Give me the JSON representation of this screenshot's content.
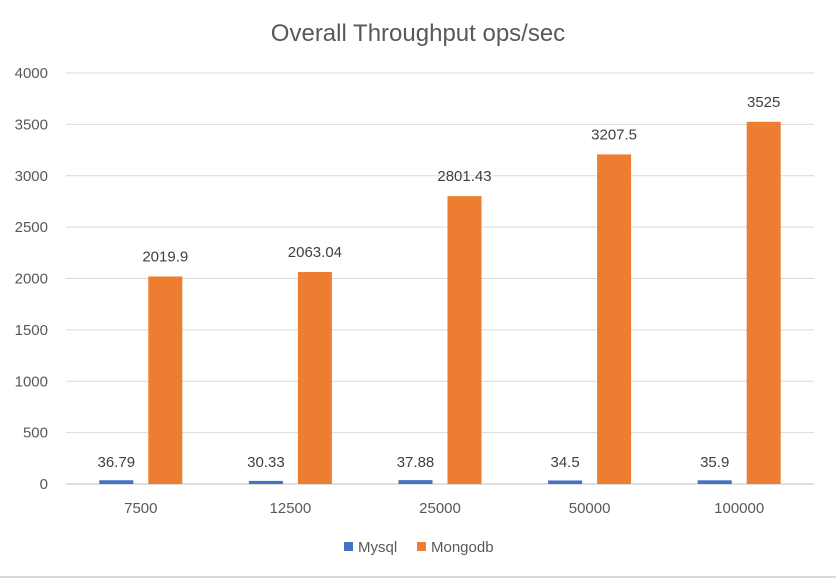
{
  "chart_data": {
    "type": "bar",
    "title": "Overall Throughput ops/sec",
    "xlabel": "",
    "ylabel": "",
    "categories": [
      "7500",
      "12500",
      "25000",
      "50000",
      "100000"
    ],
    "series": [
      {
        "name": "Mysql",
        "color": "#4472C4",
        "values": [
          36.79,
          30.33,
          37.88,
          34.5,
          35.9
        ]
      },
      {
        "name": "Mongodb",
        "color": "#ED7D31",
        "values": [
          2019.9,
          2063.04,
          2801.43,
          3207.5,
          3525
        ]
      }
    ],
    "ylim": [
      0,
      4000
    ],
    "yticks": [
      "0",
      "500",
      "1000",
      "1500",
      "2000",
      "2500",
      "3000",
      "3500",
      "4000"
    ],
    "grid": true,
    "legend": "bottom",
    "data_labels": true
  }
}
